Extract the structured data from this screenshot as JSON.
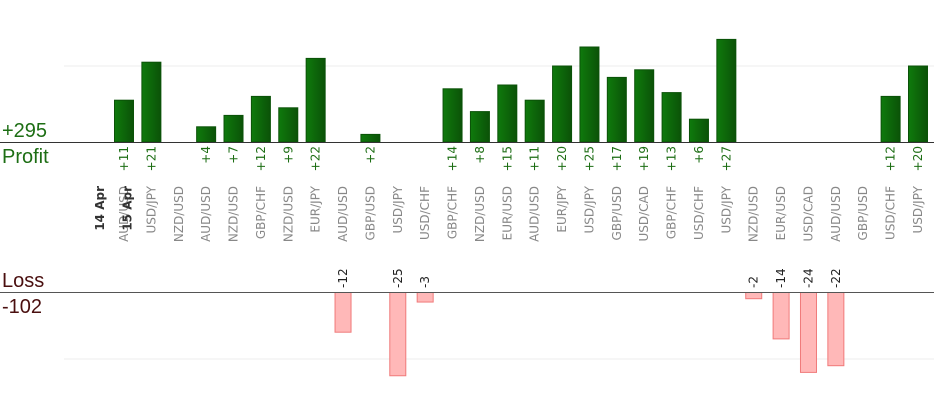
{
  "colors": {
    "profit_bar_dark": "#0b5208",
    "profit_bar_light": "#0f7a0c",
    "loss_bar_fill": "#ffb8b8",
    "loss_bar_stroke": "#f07a7a",
    "profit_text": "#1d6e14",
    "loss_text": "#4a0f0f"
  },
  "chart_data": {
    "type": "bar",
    "profit_label": "Profit",
    "profit_total": "+295",
    "loss_label": "Loss",
    "loss_total": "-102",
    "date_labels": [
      {
        "text": "14 Apr",
        "before_index": 0
      },
      {
        "text": "15 Apr",
        "before_index": 1
      }
    ],
    "categories": [
      "AUD/USD",
      "USD/JPY",
      "NZD/USD",
      "AUD/USD",
      "NZD/USD",
      "GBP/CHF",
      "NZD/USD",
      "EUR/JPY",
      "AUD/USD",
      "GBP/USD",
      "USD/JPY",
      "USD/CHF",
      "GBP/CHF",
      "NZD/USD",
      "EUR/USD",
      "AUD/USD",
      "EUR/JPY",
      "USD/JPY",
      "GBP/USD",
      "USD/CAD",
      "GBP/CHF",
      "USD/CHF",
      "USD/JPY",
      "NZD/USD",
      "EUR/USD",
      "USD/CAD",
      "AUD/USD",
      "GBP/USD",
      "USD/CHF",
      "USD/JPY"
    ],
    "profit": [
      11,
      21,
      null,
      4,
      7,
      12,
      9,
      22,
      null,
      2,
      null,
      null,
      14,
      8,
      15,
      11,
      20,
      25,
      17,
      19,
      13,
      6,
      27,
      null,
      null,
      null,
      null,
      null,
      12,
      20
    ],
    "profit_labels": [
      "+11",
      "+21",
      "",
      "+4",
      "+7",
      "+12",
      "+9",
      "+22",
      "",
      "+2",
      "",
      "",
      "+14",
      "+8",
      "+15",
      "+11",
      "+20",
      "+25",
      "+17",
      "+19",
      "+13",
      "+6",
      "+27",
      "",
      "",
      "",
      "",
      "",
      "+12",
      "+20"
    ],
    "loss": [
      null,
      null,
      null,
      null,
      null,
      null,
      null,
      null,
      12,
      null,
      25,
      3,
      null,
      null,
      null,
      null,
      null,
      null,
      null,
      null,
      null,
      null,
      null,
      2,
      14,
      24,
      22,
      null,
      null,
      null
    ],
    "loss_labels": [
      "",
      "",
      "",
      "",
      "",
      "",
      "",
      "",
      "-12",
      "",
      "-25",
      "-3",
      "",
      "",
      "",
      "",
      "",
      "",
      "",
      "",
      "",
      "",
      "",
      "-2",
      "-14",
      "-24",
      "-22",
      "",
      "",
      ""
    ],
    "profit_axis_max": 20,
    "loss_axis_max": 20
  }
}
